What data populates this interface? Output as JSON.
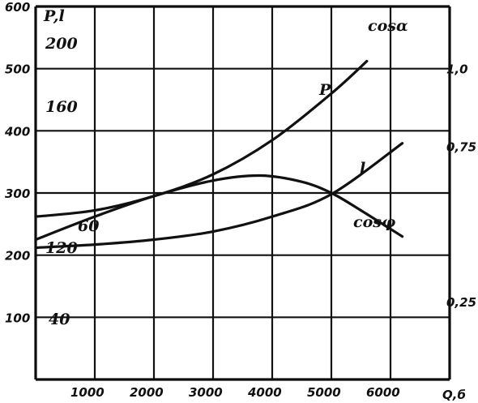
{
  "chart_data": {
    "type": "line",
    "left_axis": {
      "label": "P,l",
      "ticks": [
        {
          "value": 100,
          "text": "100"
        },
        {
          "value": 200,
          "text": "200"
        },
        {
          "value": 300,
          "text": "300"
        },
        {
          "value": 400,
          "text": "400"
        },
        {
          "value": 500,
          "text": "500"
        },
        {
          "value": 600,
          "text": "600"
        }
      ],
      "ylim": [
        0,
        600
      ]
    },
    "inner_axis": {
      "ticks": [
        {
          "value": 40,
          "text": "40"
        },
        {
          "value": 60,
          "text": "60"
        },
        {
          "value": 120,
          "text": "120"
        },
        {
          "value": 160,
          "text": "160"
        },
        {
          "value": 200,
          "text": "200"
        }
      ]
    },
    "right_axis": {
      "label": "cosα",
      "ticks": [
        {
          "value": 0.25,
          "text": "0,25"
        },
        {
          "value": 0.75,
          "text": "0,75"
        },
        {
          "value": 1.0,
          "text": "1,0"
        }
      ],
      "ylim": [
        0,
        1.2
      ]
    },
    "x_axis": {
      "label": "Q,б",
      "ticks": [
        {
          "value": 1000,
          "text": "1000"
        },
        {
          "value": 2000,
          "text": "2000"
        },
        {
          "value": 3000,
          "text": "3000"
        },
        {
          "value": 4000,
          "text": "4000"
        },
        {
          "value": 5000,
          "text": "5000"
        },
        {
          "value": 6000,
          "text": "6000"
        }
      ],
      "xlim": [
        0,
        7000
      ]
    },
    "series": [
      {
        "name": "P",
        "x": [
          0,
          1000,
          2000,
          3000,
          4000,
          5000,
          5600
        ],
        "y": [
          262,
          272,
          295,
          330,
          385,
          460,
          512
        ]
      },
      {
        "name": "l",
        "x": [
          0,
          1000,
          2000,
          3000,
          4000,
          5000,
          6200
        ],
        "y": [
          212,
          217,
          225,
          238,
          262,
          298,
          380
        ]
      },
      {
        "name": "cosφ",
        "x": [
          0,
          1000,
          2000,
          3000,
          3800,
          4500,
          5000,
          5500,
          6200
        ],
        "y": [
          225,
          262,
          295,
          320,
          328,
          318,
          300,
          272,
          230
        ]
      }
    ]
  }
}
